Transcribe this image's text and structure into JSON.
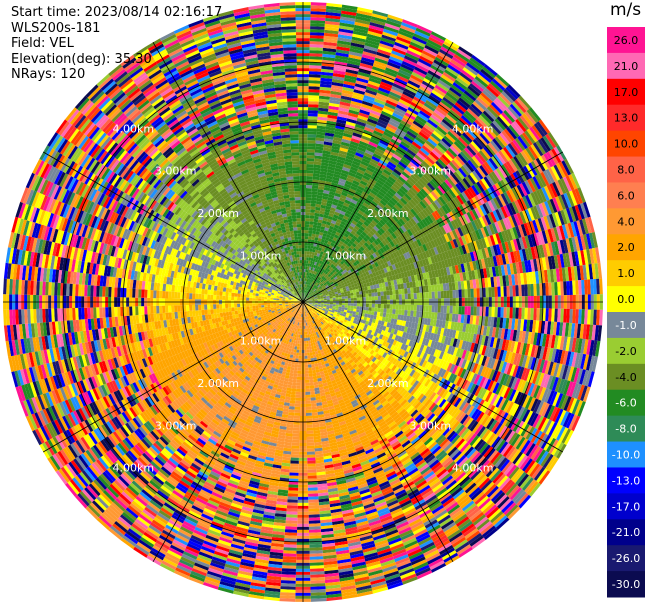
{
  "header": {
    "start_time": "Start time: 2023/08/14 02:16:17",
    "instrument": "WLS200s-181",
    "field": "Field: VEL",
    "elevation": "Elevation(deg): 35.30",
    "nrays": "NRays: 120"
  },
  "colorbar": {
    "unit": "m/s",
    "ticks": [
      "26.0",
      "21.0",
      "17.0",
      "13.0",
      "10.0",
      "8.0",
      "6.0",
      "4.0",
      "2.0",
      "1.0",
      "0.0",
      "-1.0",
      "-2.0",
      "-4.0",
      "-6.0",
      "-8.0",
      "-10.0",
      "-13.0",
      "-17.0",
      "-21.0",
      "-26.0",
      "-30.0"
    ],
    "colors": [
      "#ff1493",
      "#ff69b4",
      "#ff0000",
      "#ff2a2a",
      "#ff4500",
      "#ff6347",
      "#ff7f50",
      "#ff9933",
      "#ffa500",
      "#ffcc00",
      "#ffff00",
      "#778899",
      "#9acd32",
      "#6b8e23",
      "#228b22",
      "#2e8b57",
      "#1e90ff",
      "#0000ff",
      "#0000cd",
      "#00008b",
      "#191970",
      "#0b0b50"
    ]
  },
  "chart_data": {
    "type": "heatmap",
    "projection": "polar PPI",
    "range_ring_labels": [
      "1.00km",
      "2.00km",
      "3.00km",
      "4.00km"
    ],
    "range_rings_km": [
      1,
      2,
      3,
      4
    ],
    "n_rays": 120,
    "max_range_km": 5.0,
    "field": "VEL",
    "unit": "m/s",
    "color_scale_values": [
      26.0,
      21.0,
      17.0,
      13.0,
      10.0,
      8.0,
      6.0,
      4.0,
      2.0,
      1.0,
      0.0,
      -1.0,
      -2.0,
      -4.0,
      -6.0,
      -8.0,
      -10.0,
      -13.0,
      -17.0,
      -21.0,
      -26.0,
      -30.0
    ],
    "approx_wind_pattern": {
      "approaching_sector": "north to north-east, about -2 to -6 m/s, within about 2.5 km",
      "receding_sector": "south to south-west, about +2 to +4 m/s, within about 2.5 km",
      "noise_region": "beyond about 3 km, random values"
    }
  }
}
